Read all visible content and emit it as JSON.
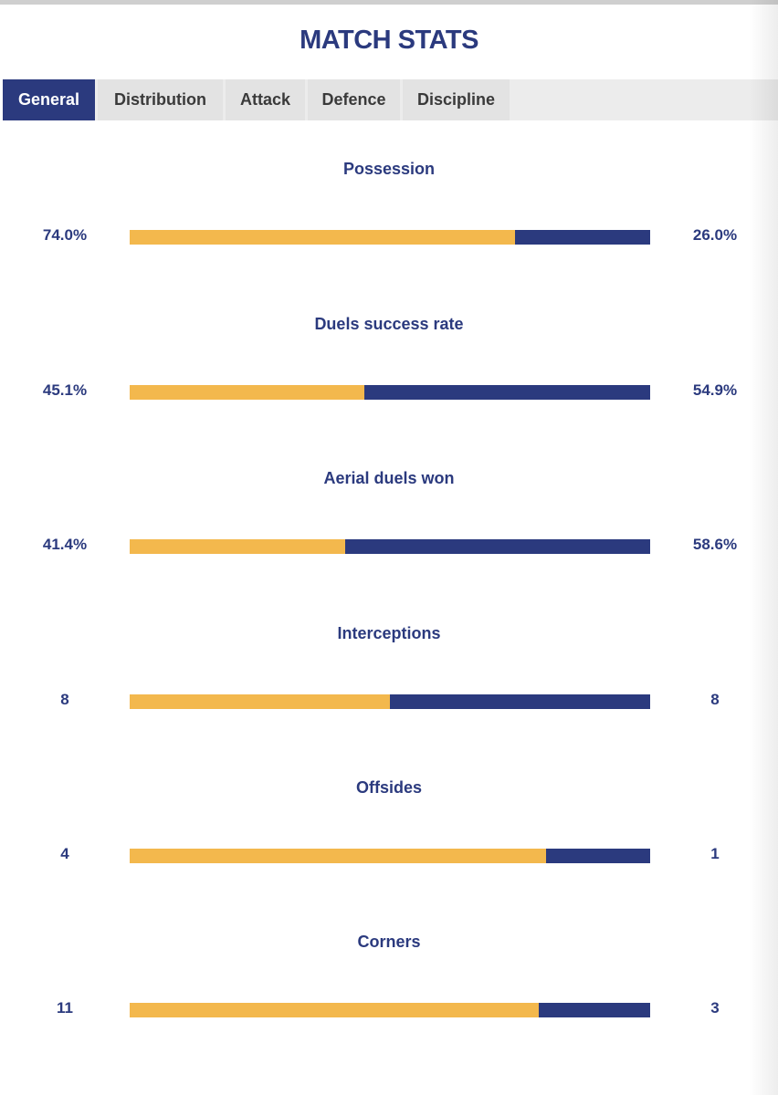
{
  "title": "MATCH STATS",
  "tabs": [
    {
      "label": "General",
      "active": true
    },
    {
      "label": "Distribution",
      "active": false
    },
    {
      "label": "Attack",
      "active": false
    },
    {
      "label": "Defence",
      "active": false
    },
    {
      "label": "Discipline",
      "active": false
    }
  ],
  "colors": {
    "home": "#f3b84d",
    "away": "#2b3a7e",
    "active_tab": "#2b3a7e"
  },
  "stats": [
    {
      "label": "Possession",
      "home": "74.0%",
      "away": "26.0%",
      "home_share": 0.74
    },
    {
      "label": "Duels success rate",
      "home": "45.1%",
      "away": "54.9%",
      "home_share": 0.451
    },
    {
      "label": "Aerial duels won",
      "home": "41.4%",
      "away": "58.6%",
      "home_share": 0.414
    },
    {
      "label": "Interceptions",
      "home": "8",
      "away": "8",
      "home_share": 0.5
    },
    {
      "label": "Offsides",
      "home": "4",
      "away": "1",
      "home_share": 0.8
    },
    {
      "label": "Corners",
      "home": "11",
      "away": "3",
      "home_share": 0.7857
    }
  ]
}
